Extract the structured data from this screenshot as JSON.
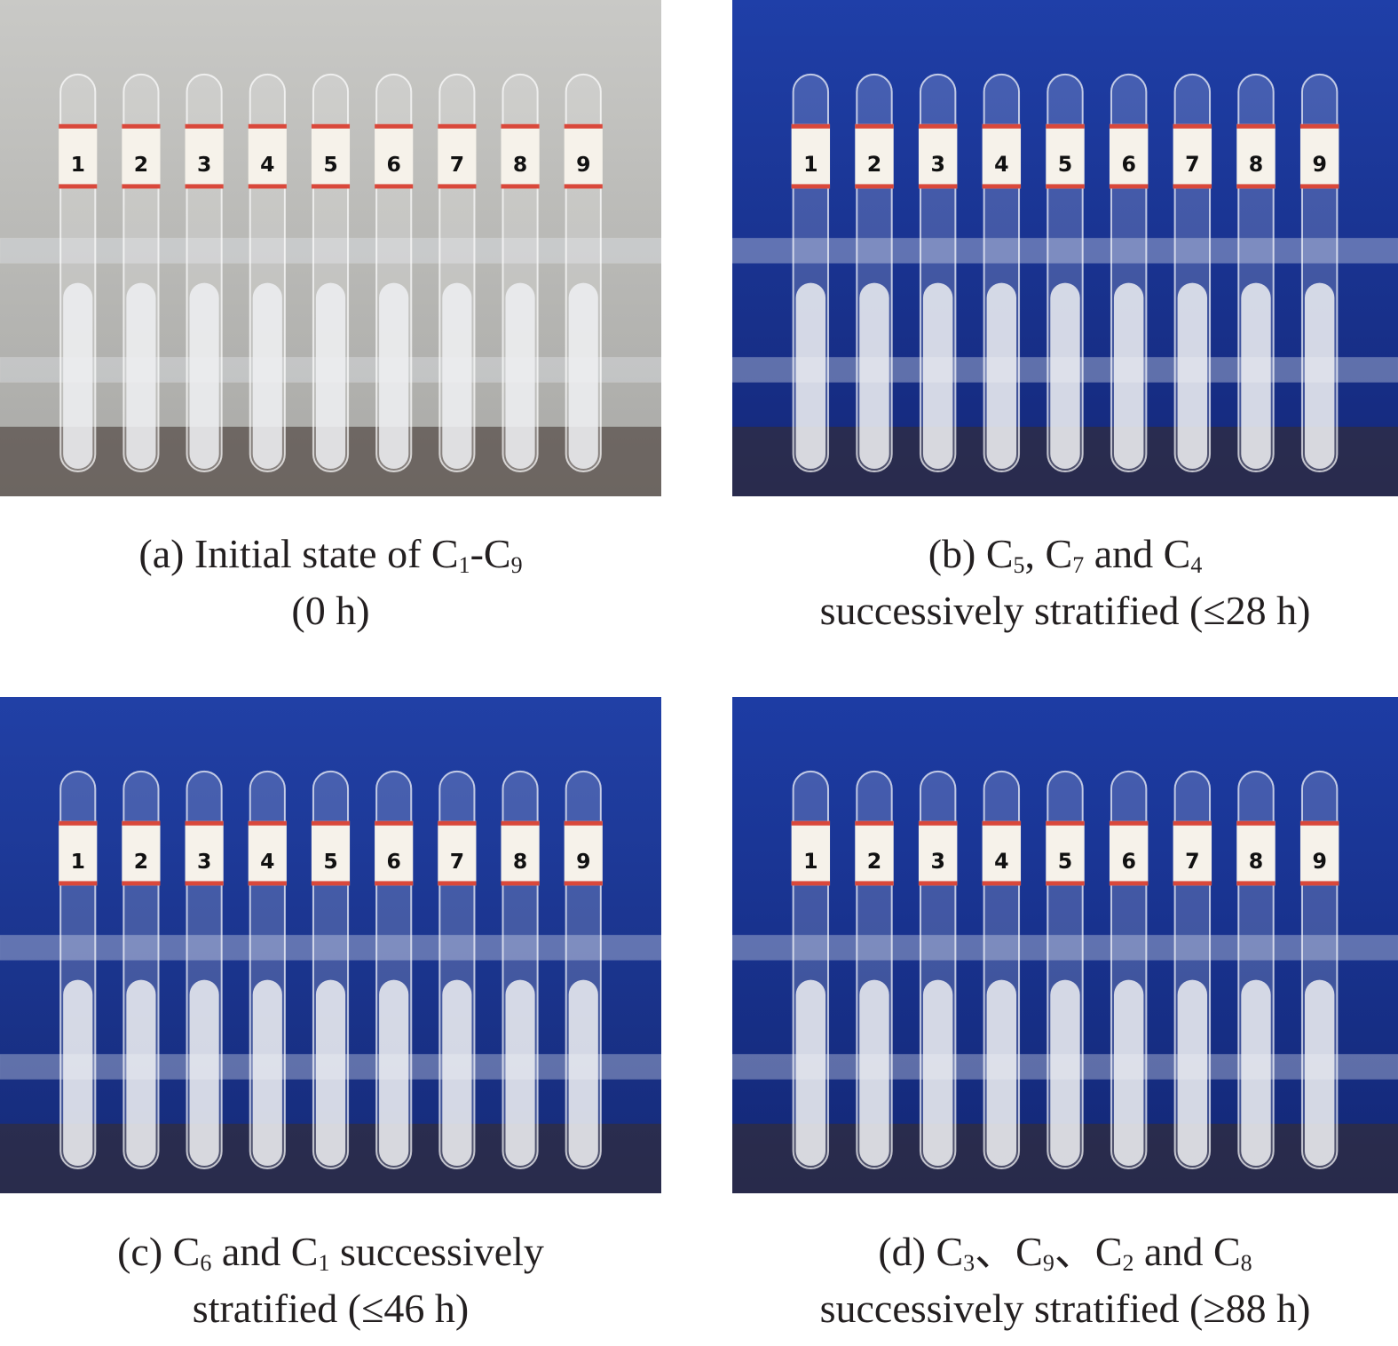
{
  "figure": {
    "panels": [
      {
        "id": "a",
        "background": "#c9c9c6",
        "background_dark": "#a9a9a6",
        "tube_labels": [
          "1",
          "2",
          "3",
          "4",
          "5",
          "6",
          "7",
          "8",
          "9"
        ],
        "caption": {
          "line1": [
            [
              "(a) Initial state of C",
              ""
            ],
            [
              "1",
              "sub"
            ],
            [
              "-C",
              ""
            ],
            [
              "9",
              "sub"
            ]
          ],
          "line2": [
            [
              "(0 h)",
              ""
            ]
          ]
        }
      },
      {
        "id": "b",
        "background": "#1f3fa8",
        "background_dark": "#14287a",
        "tube_labels": [
          "1",
          "2",
          "3",
          "4",
          "5",
          "6",
          "7",
          "8",
          "9"
        ],
        "caption": {
          "line1": [
            [
              "(b) C",
              ""
            ],
            [
              "5",
              "sub"
            ],
            [
              ", C",
              ""
            ],
            [
              "7",
              "sub"
            ],
            [
              " and C",
              ""
            ],
            [
              "4",
              "sub"
            ]
          ],
          "line2": [
            [
              "successively stratified (≤28 h)",
              ""
            ]
          ]
        }
      },
      {
        "id": "c",
        "background": "#2140a6",
        "background_dark": "#152a78",
        "tube_labels": [
          "1",
          "2",
          "3",
          "4",
          "5",
          "6",
          "7",
          "8",
          "9"
        ],
        "caption": {
          "line1": [
            [
              "(c) C",
              ""
            ],
            [
              "6",
              "sub"
            ],
            [
              " and C",
              ""
            ],
            [
              "1",
              "sub"
            ],
            [
              " successively",
              ""
            ]
          ],
          "line2": [
            [
              "stratified (≤46 h)",
              ""
            ]
          ]
        }
      },
      {
        "id": "d",
        "background": "#1d3ca4",
        "background_dark": "#132775",
        "tube_labels": [
          "1",
          "2",
          "3",
          "4",
          "5",
          "6",
          "7",
          "8",
          "9"
        ],
        "caption": {
          "line1": [
            [
              "(d) C",
              ""
            ],
            [
              "3",
              "sub"
            ],
            [
              "、C",
              ""
            ],
            [
              "9",
              "sub"
            ],
            [
              "、C",
              ""
            ],
            [
              "2",
              "sub"
            ],
            [
              " and C",
              ""
            ],
            [
              "8",
              "sub"
            ]
          ],
          "line2": [
            [
              "successively stratified (≥88 h)",
              ""
            ]
          ]
        }
      }
    ]
  }
}
